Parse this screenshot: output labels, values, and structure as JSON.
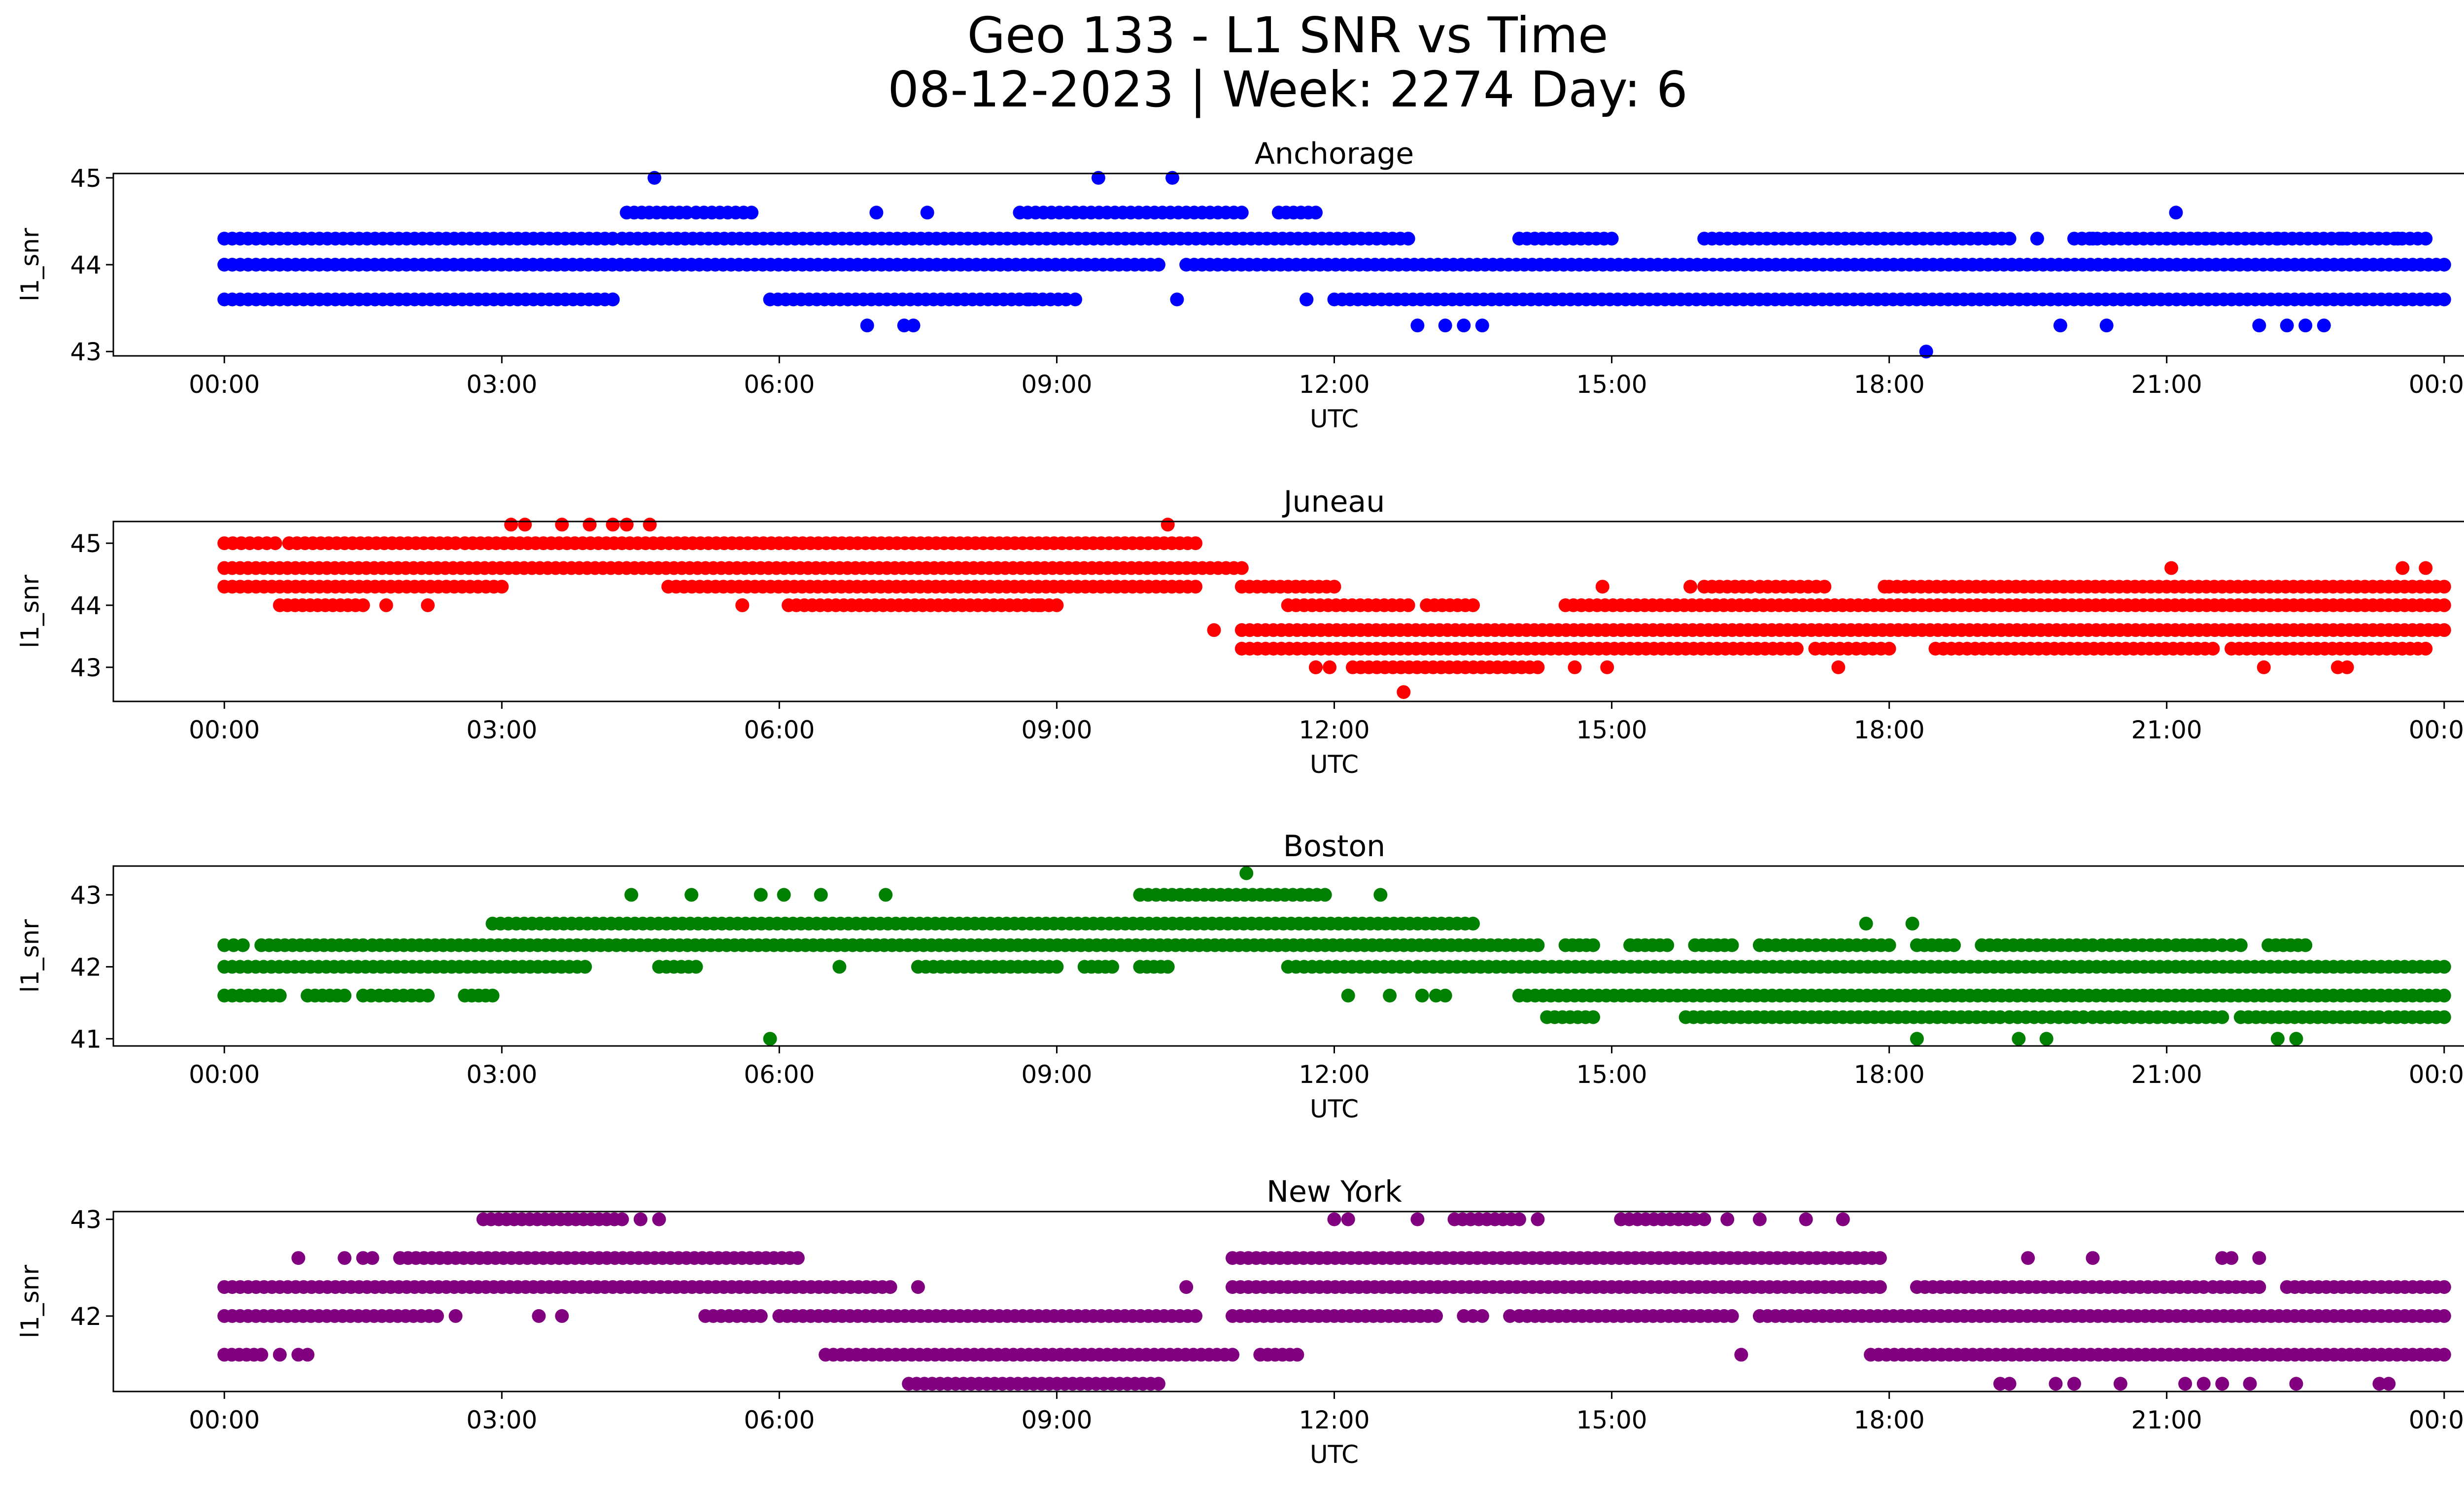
{
  "figure": {
    "title_line1": "Geo 133 - L1 SNR vs Time",
    "title_line2": "08-12-2023 | Week: 2274 Day: 6"
  },
  "chart_data": [
    {
      "type": "scatter",
      "title": "Anchorage",
      "xlabel": "UTC",
      "ylabel": "l1_snr",
      "color": "#0000ff",
      "xticks": [
        "00:00",
        "03:00",
        "06:00",
        "09:00",
        "12:00",
        "15:00",
        "18:00",
        "21:00",
        "00:00"
      ],
      "xlim_hours": [
        -1.2,
        25.2
      ],
      "ylim": [
        42.95,
        45.05
      ],
      "yticks": [
        43,
        44,
        45
      ],
      "bands": [
        {
          "y": 43.6,
          "ranges": [
            [
              0,
              4.2
            ],
            [
              5.9,
              9.1
            ],
            [
              11.7,
              11.7
            ],
            [
              12.0,
              24.0
            ]
          ]
        },
        {
          "y": 44.0,
          "ranges": [
            [
              0,
              10.1
            ],
            [
              10.4,
              24.0
            ]
          ]
        },
        {
          "y": 44.3,
          "ranges": [
            [
              0,
              4.2
            ],
            [
              4.3,
              12.8
            ],
            [
              14.0,
              15.0
            ],
            [
              16.0,
              19.3
            ],
            [
              20.0,
              21.5
            ],
            [
              21.0,
              23.8
            ]
          ]
        },
        {
          "y": 44.6,
          "ranges": [
            [
              4.35,
              5.0
            ],
            [
              5.1,
              5.7
            ],
            [
              8.6,
              11.0
            ],
            [
              11.4,
              11.8
            ]
          ]
        }
      ],
      "points": [
        {
          "x": 4.65,
          "y": 45.0
        },
        {
          "x": 9.45,
          "y": 45.0
        },
        {
          "x": 10.25,
          "y": 45.0
        },
        {
          "x": 7.05,
          "y": 44.6
        },
        {
          "x": 7.6,
          "y": 44.6
        },
        {
          "x": 21.1,
          "y": 44.6
        },
        {
          "x": 6.95,
          "y": 43.3
        },
        {
          "x": 7.35,
          "y": 43.3
        },
        {
          "x": 7.45,
          "y": 43.3
        },
        {
          "x": 12.9,
          "y": 43.3
        },
        {
          "x": 13.2,
          "y": 43.3
        },
        {
          "x": 13.4,
          "y": 43.3
        },
        {
          "x": 13.6,
          "y": 43.3
        },
        {
          "x": 19.85,
          "y": 43.3
        },
        {
          "x": 20.35,
          "y": 43.3
        },
        {
          "x": 22.0,
          "y": 43.3
        },
        {
          "x": 22.3,
          "y": 43.3
        },
        {
          "x": 22.5,
          "y": 43.3
        },
        {
          "x": 22.7,
          "y": 43.3
        },
        {
          "x": 18.4,
          "y": 43.0
        },
        {
          "x": 4.2,
          "y": 43.6
        },
        {
          "x": 8.7,
          "y": 43.6
        },
        {
          "x": 9.2,
          "y": 43.6
        },
        {
          "x": 10.3,
          "y": 43.6
        },
        {
          "x": 11.7,
          "y": 43.6
        },
        {
          "x": 19.6,
          "y": 44.3
        },
        {
          "x": 20.2,
          "y": 44.3
        },
        {
          "x": 22.2,
          "y": 44.3
        },
        {
          "x": 22.9,
          "y": 44.3
        },
        {
          "x": 23.5,
          "y": 44.3
        }
      ]
    },
    {
      "type": "scatter",
      "title": "Juneau",
      "xlabel": "UTC",
      "ylabel": "l1_snr",
      "color": "#ff0000",
      "xticks": [
        "00:00",
        "03:00",
        "06:00",
        "09:00",
        "12:00",
        "15:00",
        "18:00",
        "21:00",
        "00:00"
      ],
      "xlim_hours": [
        -1.2,
        25.2
      ],
      "ylim": [
        42.45,
        45.35
      ],
      "yticks": [
        43,
        44,
        45
      ],
      "bands": [
        {
          "y": 43.0,
          "ranges": [
            [
              11.8,
              11.8
            ],
            [
              12.2,
              14.2
            ]
          ]
        },
        {
          "y": 43.3,
          "ranges": [
            [
              11.0,
              17.0
            ],
            [
              17.2,
              18.0
            ],
            [
              18.5,
              21.5
            ],
            [
              21.7,
              23.8
            ]
          ]
        },
        {
          "y": 43.6,
          "ranges": [
            [
              11.0,
              24.0
            ]
          ]
        },
        {
          "y": 44.0,
          "ranges": [
            [
              0.6,
              1.5
            ],
            [
              5.6,
              5.6
            ],
            [
              6.1,
              9.0
            ],
            [
              11.5,
              12.8
            ],
            [
              13.0,
              13.5
            ],
            [
              14.5,
              24.0
            ]
          ]
        },
        {
          "y": 44.3,
          "ranges": [
            [
              0,
              3.0
            ],
            [
              4.8,
              10.5
            ],
            [
              11.0,
              12.0
            ],
            [
              16.0,
              16.5
            ],
            [
              16.6,
              17.3
            ],
            [
              18.0,
              24.0
            ]
          ]
        },
        {
          "y": 44.6,
          "ranges": [
            [
              0,
              11.0
            ]
          ]
        },
        {
          "y": 45.0,
          "ranges": [
            [
              0,
              0.55
            ],
            [
              0.7,
              2.5
            ],
            [
              2.6,
              10.5
            ]
          ]
        }
      ],
      "points": [
        {
          "x": 3.1,
          "y": 45.3
        },
        {
          "x": 3.25,
          "y": 45.3
        },
        {
          "x": 3.65,
          "y": 45.3
        },
        {
          "x": 3.95,
          "y": 45.3
        },
        {
          "x": 4.2,
          "y": 45.3
        },
        {
          "x": 4.35,
          "y": 45.3
        },
        {
          "x": 4.6,
          "y": 45.3
        },
        {
          "x": 10.2,
          "y": 45.3
        },
        {
          "x": 1.75,
          "y": 44.0
        },
        {
          "x": 2.2,
          "y": 44.0
        },
        {
          "x": 8.8,
          "y": 44.0
        },
        {
          "x": 10.7,
          "y": 43.6
        },
        {
          "x": 12.75,
          "y": 42.6
        },
        {
          "x": 11.95,
          "y": 43.0
        },
        {
          "x": 14.6,
          "y": 43.0
        },
        {
          "x": 14.95,
          "y": 43.0
        },
        {
          "x": 17.45,
          "y": 43.0
        },
        {
          "x": 22.05,
          "y": 43.0
        },
        {
          "x": 22.85,
          "y": 43.0
        },
        {
          "x": 22.95,
          "y": 43.0
        },
        {
          "x": 21.05,
          "y": 44.6
        },
        {
          "x": 23.55,
          "y": 44.6
        },
        {
          "x": 23.8,
          "y": 44.6
        },
        {
          "x": 14.9,
          "y": 44.3
        },
        {
          "x": 15.85,
          "y": 44.3
        },
        {
          "x": 17.95,
          "y": 44.3
        }
      ]
    },
    {
      "type": "scatter",
      "title": "Boston",
      "xlabel": "UTC",
      "ylabel": "l1_snr",
      "color": "#008000",
      "xticks": [
        "00:00",
        "03:00",
        "06:00",
        "09:00",
        "12:00",
        "15:00",
        "18:00",
        "21:00",
        "00:00"
      ],
      "xlim_hours": [
        -1.2,
        25.2
      ],
      "ylim": [
        40.9,
        43.4
      ],
      "yticks": [
        41,
        42,
        43
      ],
      "bands": [
        {
          "y": 41.3,
          "ranges": [
            [
              14.3,
              14.8
            ],
            [
              15.8,
              19.2
            ],
            [
              19.3,
              20.1
            ],
            [
              20.2,
              21.6
            ],
            [
              21.8,
              23.3
            ],
            [
              23.4,
              24.0
            ]
          ]
        },
        {
          "y": 41.6,
          "ranges": [
            [
              0,
              0.6
            ],
            [
              0.9,
              1.3
            ],
            [
              1.5,
              2.2
            ],
            [
              2.6,
              2.9
            ],
            [
              13.1,
              13.2
            ],
            [
              14.0,
              24.0
            ]
          ]
        },
        {
          "y": 42.0,
          "ranges": [
            [
              0,
              3.9
            ],
            [
              4.7,
              5.1
            ],
            [
              7.5,
              9.0
            ],
            [
              9.3,
              9.6
            ],
            [
              9.9,
              10.2
            ],
            [
              11.5,
              12.8
            ],
            [
              12.9,
              24.0
            ]
          ]
        },
        {
          "y": 42.3,
          "ranges": [
            [
              0,
              0.2
            ],
            [
              0.4,
              1.5
            ],
            [
              1.6,
              14.2
            ],
            [
              14.5,
              14.8
            ],
            [
              15.2,
              15.6
            ],
            [
              15.9,
              16.3
            ],
            [
              16.6,
              18.0
            ],
            [
              18.3,
              18.7
            ],
            [
              19.0,
              20.2
            ],
            [
              20.3,
              21.0
            ],
            [
              21.1,
              21.5
            ],
            [
              21.6,
              21.8
            ],
            [
              22.1,
              22.5
            ]
          ]
        },
        {
          "y": 42.6,
          "ranges": [
            [
              2.9,
              13.5
            ]
          ]
        },
        {
          "y": 43.0,
          "ranges": [
            [
              9.9,
              11.9
            ]
          ]
        }
      ],
      "points": [
        {
          "x": 4.4,
          "y": 43.0
        },
        {
          "x": 5.05,
          "y": 43.0
        },
        {
          "x": 5.8,
          "y": 43.0
        },
        {
          "x": 6.05,
          "y": 43.0
        },
        {
          "x": 6.45,
          "y": 43.0
        },
        {
          "x": 7.15,
          "y": 43.0
        },
        {
          "x": 12.5,
          "y": 43.0
        },
        {
          "x": 11.05,
          "y": 43.3
        },
        {
          "x": 5.9,
          "y": 41.0
        },
        {
          "x": 18.3,
          "y": 41.0
        },
        {
          "x": 19.4,
          "y": 41.0
        },
        {
          "x": 19.7,
          "y": 41.0
        },
        {
          "x": 22.2,
          "y": 41.0
        },
        {
          "x": 22.4,
          "y": 41.0
        },
        {
          "x": 17.75,
          "y": 42.6
        },
        {
          "x": 18.25,
          "y": 42.6
        },
        {
          "x": 6.65,
          "y": 42.0
        },
        {
          "x": 12.15,
          "y": 41.6
        },
        {
          "x": 12.6,
          "y": 41.6
        },
        {
          "x": 12.95,
          "y": 41.6
        }
      ]
    },
    {
      "type": "scatter",
      "title": "New York",
      "xlabel": "UTC",
      "ylabel": "l1_snr",
      "color": "#800080",
      "xticks": [
        "00:00",
        "03:00",
        "06:00",
        "09:00",
        "12:00",
        "15:00",
        "18:00",
        "21:00",
        "00:00"
      ],
      "xlim_hours": [
        -1.2,
        25.2
      ],
      "ylim": [
        41.22,
        43.08
      ],
      "yticks": [
        42,
        43
      ],
      "bands": [
        {
          "y": 41.3,
          "ranges": [
            [
              7.4,
              10.1
            ]
          ]
        },
        {
          "y": 41.6,
          "ranges": [
            [
              0,
              0.4
            ],
            [
              6.5,
              10.9
            ],
            [
              11.2,
              11.6
            ],
            [
              17.8,
              24.0
            ]
          ]
        },
        {
          "y": 42.0,
          "ranges": [
            [
              0,
              2.3
            ],
            [
              5.2,
              5.8
            ],
            [
              6.0,
              10.5
            ],
            [
              10.9,
              13.1
            ],
            [
              13.4,
              13.6
            ],
            [
              14.0,
              16.3
            ],
            [
              16.6,
              24.0
            ]
          ]
        },
        {
          "y": 42.3,
          "ranges": [
            [
              0,
              7.2
            ],
            [
              10.9,
              17.9
            ],
            [
              18.3,
              21.4
            ],
            [
              21.5,
              22.0
            ],
            [
              22.3,
              24.0
            ]
          ]
        },
        {
          "y": 42.6,
          "ranges": [
            [
              1.9,
              6.2
            ],
            [
              10.9,
              17.9
            ]
          ]
        },
        {
          "y": 43.0,
          "ranges": [
            [
              2.8,
              4.3
            ],
            [
              13.3,
              14.0
            ],
            [
              15.1,
              15.9
            ]
          ]
        }
      ],
      "points": [
        {
          "x": 0.8,
          "y": 42.6
        },
        {
          "x": 1.3,
          "y": 42.6
        },
        {
          "x": 1.5,
          "y": 42.6
        },
        {
          "x": 1.6,
          "y": 42.6
        },
        {
          "x": 19.5,
          "y": 42.6
        },
        {
          "x": 20.2,
          "y": 42.6
        },
        {
          "x": 21.6,
          "y": 42.6
        },
        {
          "x": 21.7,
          "y": 42.6
        },
        {
          "x": 22.0,
          "y": 42.6
        },
        {
          "x": 4.5,
          "y": 43.0
        },
        {
          "x": 4.7,
          "y": 43.0
        },
        {
          "x": 12.0,
          "y": 43.0
        },
        {
          "x": 12.15,
          "y": 43.0
        },
        {
          "x": 12.9,
          "y": 43.0
        },
        {
          "x": 14.2,
          "y": 43.0
        },
        {
          "x": 16.0,
          "y": 43.0
        },
        {
          "x": 16.25,
          "y": 43.0
        },
        {
          "x": 16.6,
          "y": 43.0
        },
        {
          "x": 17.1,
          "y": 43.0
        },
        {
          "x": 17.5,
          "y": 43.0
        },
        {
          "x": 0.6,
          "y": 41.6
        },
        {
          "x": 0.8,
          "y": 41.6
        },
        {
          "x": 0.9,
          "y": 41.6
        },
        {
          "x": 16.4,
          "y": 41.6
        },
        {
          "x": 19.2,
          "y": 41.3
        },
        {
          "x": 19.3,
          "y": 41.3
        },
        {
          "x": 19.8,
          "y": 41.3
        },
        {
          "x": 20.0,
          "y": 41.3
        },
        {
          "x": 20.5,
          "y": 41.3
        },
        {
          "x": 21.2,
          "y": 41.3
        },
        {
          "x": 21.4,
          "y": 41.3
        },
        {
          "x": 21.6,
          "y": 41.3
        },
        {
          "x": 21.9,
          "y": 41.3
        },
        {
          "x": 22.4,
          "y": 41.3
        },
        {
          "x": 23.3,
          "y": 41.3
        },
        {
          "x": 23.4,
          "y": 41.3
        },
        {
          "x": 2.5,
          "y": 42.0
        },
        {
          "x": 3.4,
          "y": 42.0
        },
        {
          "x": 3.65,
          "y": 42.0
        },
        {
          "x": 13.9,
          "y": 42.0
        },
        {
          "x": 7.5,
          "y": 42.3
        },
        {
          "x": 10.4,
          "y": 42.3
        }
      ]
    }
  ]
}
